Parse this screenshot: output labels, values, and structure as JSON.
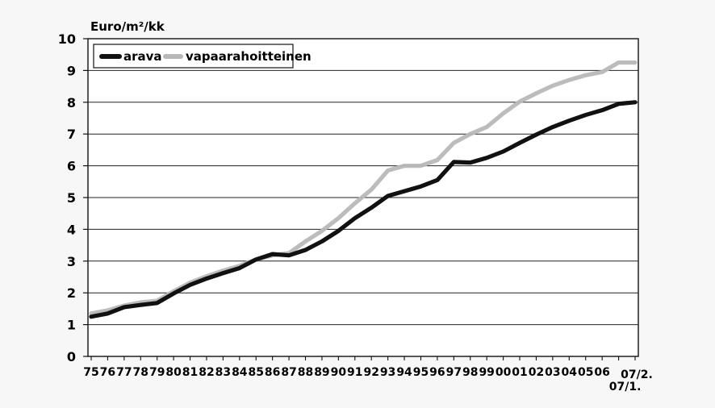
{
  "chart_data": {
    "type": "line",
    "title": "",
    "ylabel": "Euro/m²/kk",
    "xlabel": "",
    "ylim": [
      0,
      10
    ],
    "yticks": [
      0,
      1,
      2,
      3,
      4,
      5,
      6,
      7,
      8,
      9,
      10
    ],
    "grid": true,
    "legend_position": "top-left",
    "x_labels": [
      "75",
      "76",
      "77",
      "78",
      "79",
      "80",
      "81",
      "82",
      "83",
      "84",
      "85",
      "86",
      "87",
      "88",
      "89",
      "90",
      "91",
      "92",
      "93",
      "94",
      "95",
      "96",
      "97",
      "98",
      "99",
      "00",
      "01",
      "02",
      "03",
      "04",
      "05",
      "06",
      "07/1.",
      "07/2."
    ],
    "series": [
      {
        "name": "arava",
        "color": "#111111",
        "values": [
          1.25,
          1.35,
          1.55,
          1.62,
          1.68,
          1.98,
          2.25,
          2.45,
          2.62,
          2.78,
          3.05,
          3.22,
          3.18,
          3.35,
          3.62,
          3.95,
          4.35,
          4.68,
          5.05,
          5.2,
          5.35,
          5.55,
          6.12,
          6.1,
          6.25,
          6.45,
          6.72,
          6.98,
          7.22,
          7.42,
          7.6,
          7.75,
          7.95,
          8.0
        ]
      },
      {
        "name": "vapaarahoitteinen",
        "color": "#b8b8b8",
        "values": [
          1.35,
          1.45,
          1.6,
          1.7,
          1.75,
          2.05,
          2.32,
          2.52,
          2.7,
          2.85,
          3.05,
          3.18,
          3.25,
          3.62,
          3.95,
          4.35,
          4.82,
          5.25,
          5.85,
          6.0,
          6.0,
          6.18,
          6.72,
          7.0,
          7.22,
          7.65,
          8.02,
          8.28,
          8.52,
          8.7,
          8.85,
          8.95,
          9.25,
          9.25
        ]
      }
    ]
  }
}
